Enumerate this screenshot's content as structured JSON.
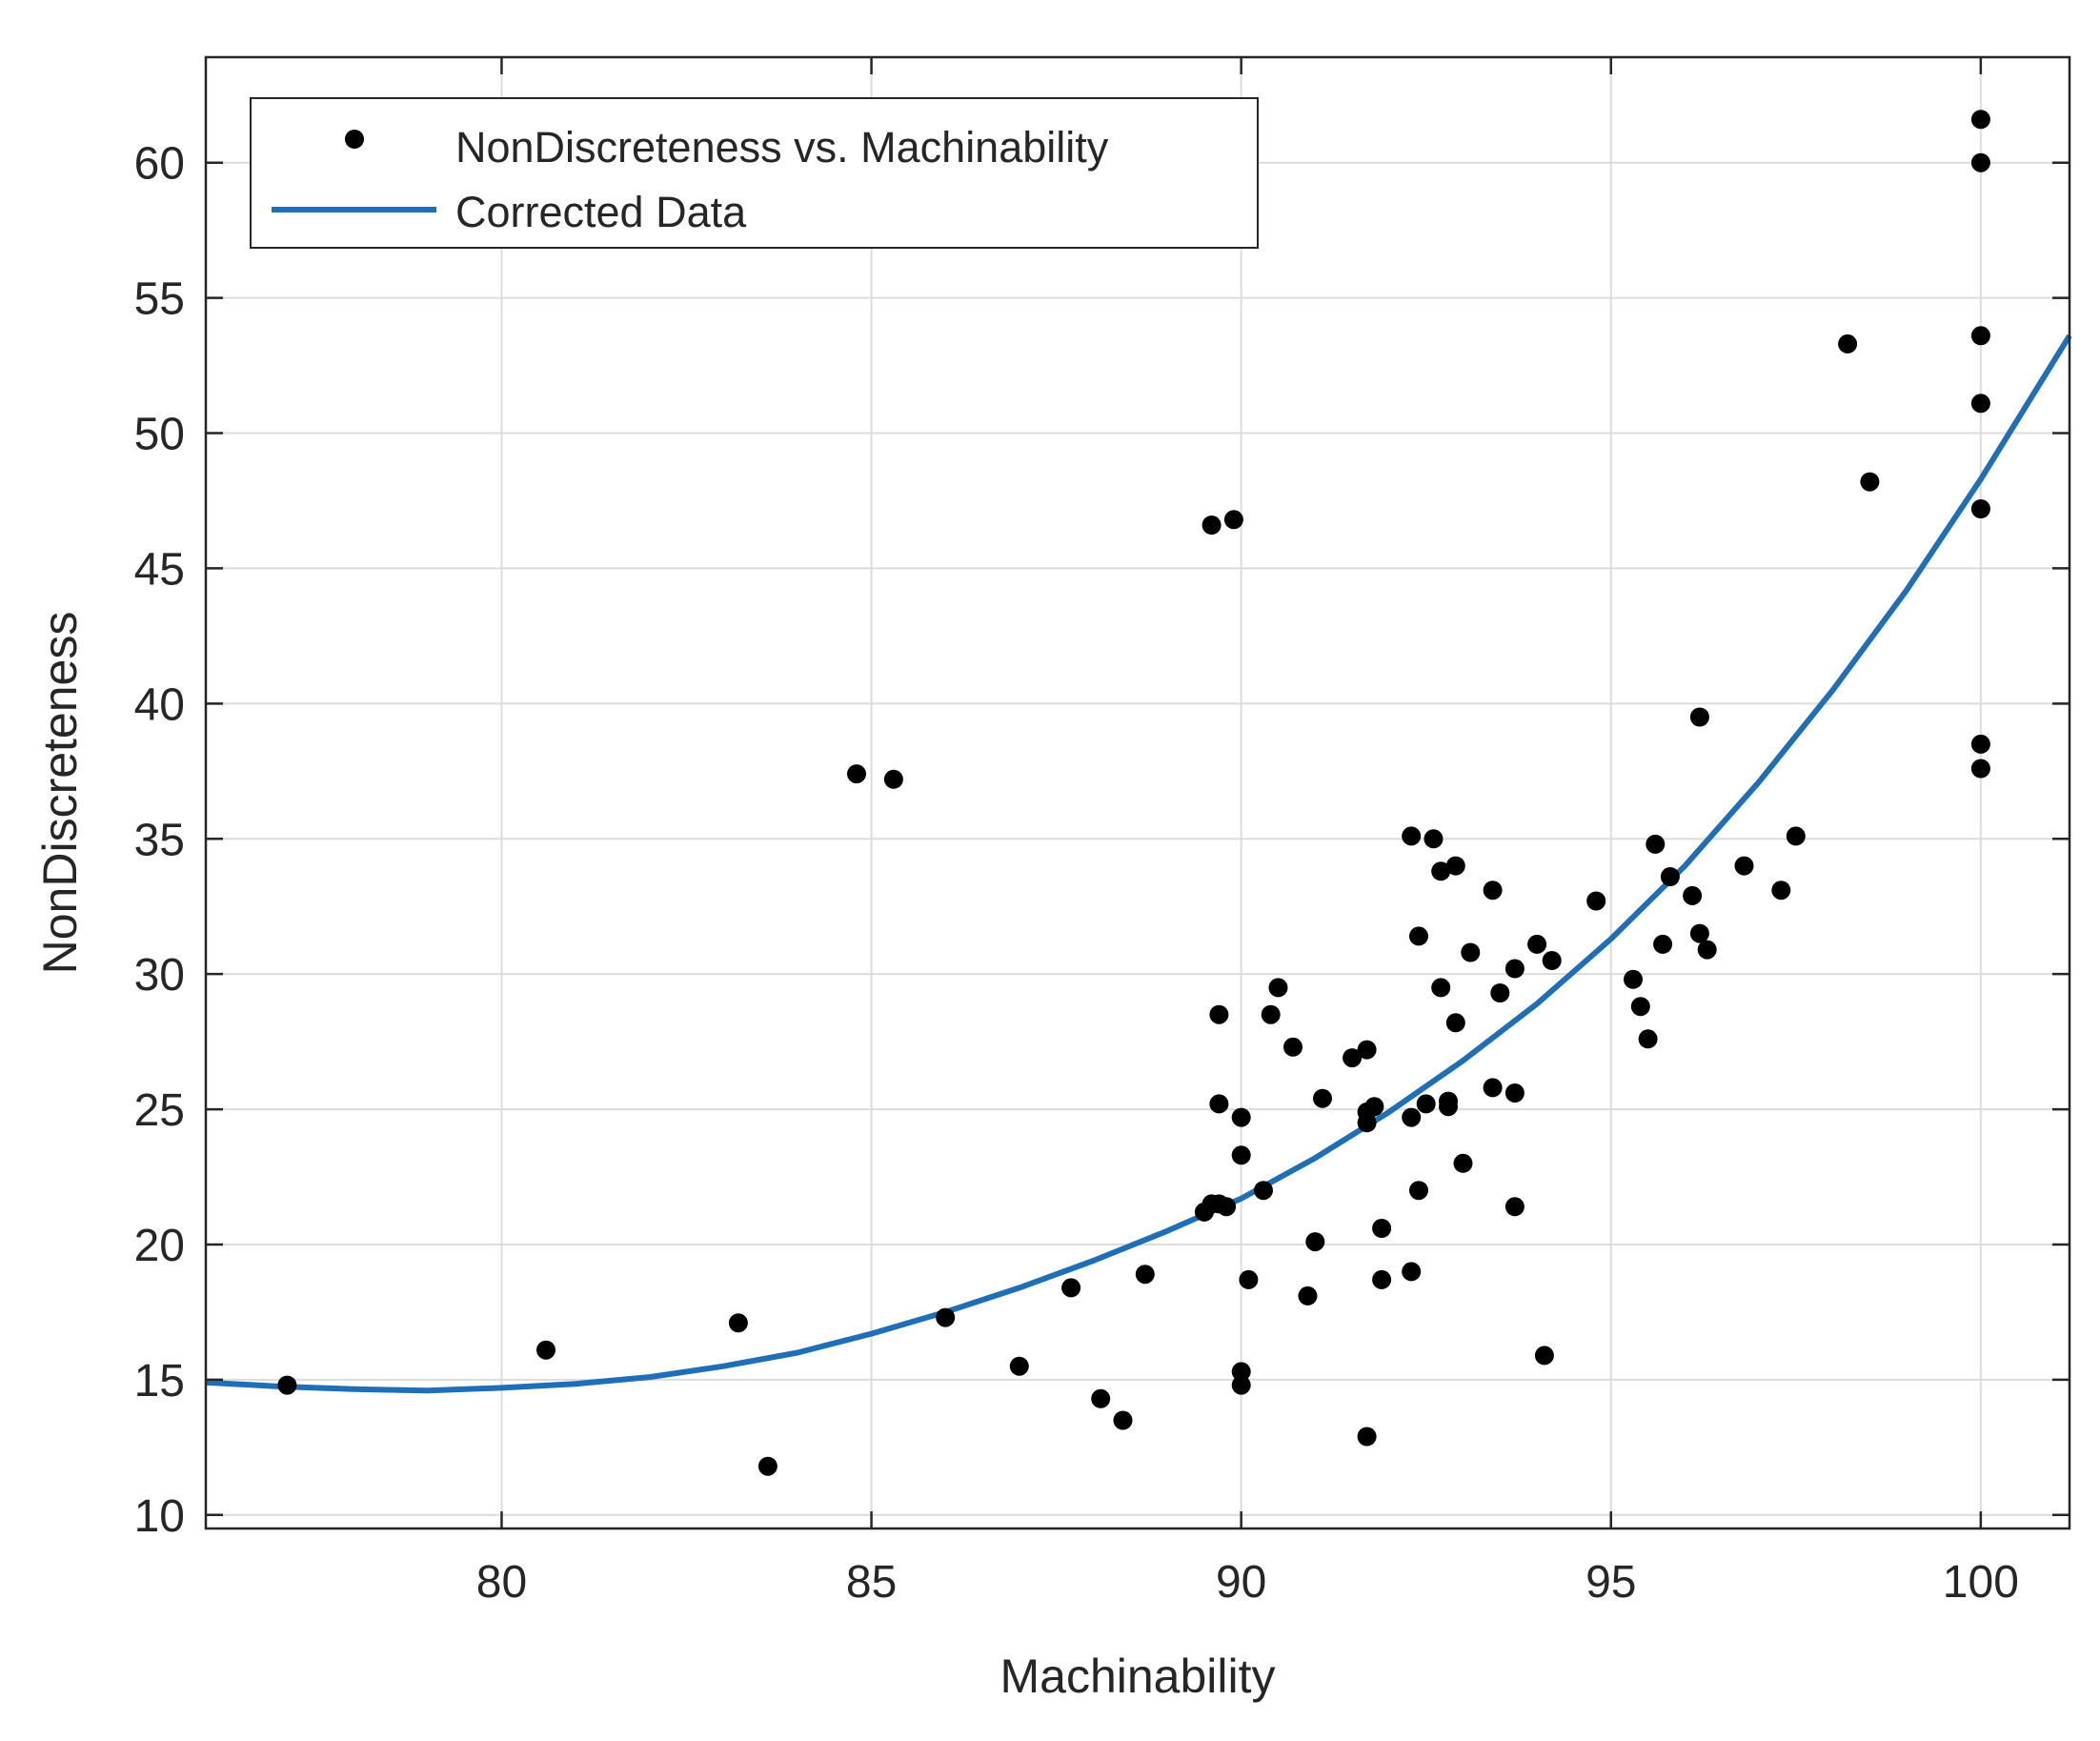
{
  "chart_data": {
    "type": "scatter",
    "title": "",
    "xlabel": "Machinability",
    "ylabel": "NonDiscreteness",
    "xlim": [
      76,
      101.2
    ],
    "ylim": [
      9.5,
      63.9
    ],
    "xticks": [
      80,
      85,
      90,
      95,
      100
    ],
    "yticks": [
      10,
      15,
      20,
      25,
      30,
      35,
      40,
      45,
      50,
      55,
      60
    ],
    "grid": true,
    "legend_position": "top-left",
    "colors": {
      "points": "#000000",
      "curve": "#1f6fb8",
      "grid": "#dcdcdc",
      "axis": "#262626"
    },
    "legend": [
      {
        "label": "NonDiscreteness vs. Machinability",
        "kind": "marker"
      },
      {
        "label": "Corrected Data",
        "kind": "line"
      }
    ],
    "series": [
      {
        "name": "NonDiscreteness vs. Machinability",
        "kind": "scatter",
        "points": [
          [
            77.1,
            14.8
          ],
          [
            80.6,
            16.1
          ],
          [
            83.2,
            17.1
          ],
          [
            83.6,
            11.8
          ],
          [
            84.8,
            37.4
          ],
          [
            85.3,
            37.2
          ],
          [
            86.0,
            17.3
          ],
          [
            87.0,
            15.5
          ],
          [
            87.7,
            18.4
          ],
          [
            88.1,
            14.3
          ],
          [
            88.4,
            13.5
          ],
          [
            88.7,
            18.9
          ],
          [
            89.5,
            21.2
          ],
          [
            89.6,
            21.5
          ],
          [
            89.6,
            46.6
          ],
          [
            89.7,
            25.2
          ],
          [
            89.7,
            21.5
          ],
          [
            89.7,
            28.5
          ],
          [
            89.8,
            21.4
          ],
          [
            89.9,
            46.8
          ],
          [
            90.0,
            24.7
          ],
          [
            90.0,
            23.3
          ],
          [
            90.0,
            15.3
          ],
          [
            90.0,
            14.8
          ],
          [
            90.1,
            18.7
          ],
          [
            90.3,
            22.0
          ],
          [
            90.4,
            28.5
          ],
          [
            90.5,
            29.5
          ],
          [
            90.7,
            27.3
          ],
          [
            90.9,
            18.1
          ],
          [
            91.0,
            20.1
          ],
          [
            91.1,
            25.4
          ],
          [
            91.5,
            26.9
          ],
          [
            91.7,
            12.9
          ],
          [
            91.7,
            27.2
          ],
          [
            91.7,
            24.9
          ],
          [
            91.7,
            24.5
          ],
          [
            91.8,
            25.1
          ],
          [
            91.9,
            20.6
          ],
          [
            91.9,
            18.7
          ],
          [
            92.3,
            19.0
          ],
          [
            92.3,
            35.1
          ],
          [
            92.3,
            24.7
          ],
          [
            92.4,
            22.0
          ],
          [
            92.4,
            31.4
          ],
          [
            92.5,
            25.2
          ],
          [
            92.6,
            35.0
          ],
          [
            92.7,
            33.8
          ],
          [
            92.7,
            29.5
          ],
          [
            92.8,
            25.1
          ],
          [
            92.8,
            25.3
          ],
          [
            92.9,
            34.0
          ],
          [
            92.9,
            28.2
          ],
          [
            93.0,
            23.0
          ],
          [
            93.1,
            30.8
          ],
          [
            93.4,
            33.1
          ],
          [
            93.4,
            25.8
          ],
          [
            93.5,
            29.3
          ],
          [
            93.7,
            25.6
          ],
          [
            93.7,
            21.4
          ],
          [
            93.7,
            30.2
          ],
          [
            94.0,
            31.1
          ],
          [
            94.1,
            15.9
          ],
          [
            94.2,
            30.5
          ],
          [
            94.8,
            32.7
          ],
          [
            95.3,
            29.8
          ],
          [
            95.4,
            28.8
          ],
          [
            95.5,
            27.6
          ],
          [
            95.6,
            34.8
          ],
          [
            95.7,
            31.1
          ],
          [
            95.8,
            33.6
          ],
          [
            96.1,
            32.9
          ],
          [
            96.2,
            39.5
          ],
          [
            96.2,
            31.5
          ],
          [
            96.3,
            30.9
          ],
          [
            96.8,
            34.0
          ],
          [
            97.3,
            33.1
          ],
          [
            97.5,
            35.1
          ],
          [
            98.2,
            53.3
          ],
          [
            98.5,
            48.2
          ],
          [
            100.0,
            61.6
          ],
          [
            100.0,
            60.0
          ],
          [
            100.0,
            53.6
          ],
          [
            100.0,
            51.1
          ],
          [
            100.0,
            47.2
          ],
          [
            100.0,
            38.5
          ],
          [
            100.0,
            37.6
          ]
        ]
      },
      {
        "name": "Corrected Data",
        "kind": "line",
        "points": [
          [
            76.0,
            14.9
          ],
          [
            77.0,
            14.75
          ],
          [
            78.0,
            14.65
          ],
          [
            79.0,
            14.6
          ],
          [
            80.0,
            14.7
          ],
          [
            81.0,
            14.85
          ],
          [
            82.0,
            15.1
          ],
          [
            83.0,
            15.5
          ],
          [
            84.0,
            16.0
          ],
          [
            85.0,
            16.7
          ],
          [
            86.0,
            17.5
          ],
          [
            87.0,
            18.4
          ],
          [
            88.0,
            19.4
          ],
          [
            89.0,
            20.5
          ],
          [
            90.0,
            21.7
          ],
          [
            91.0,
            23.2
          ],
          [
            92.0,
            24.9
          ],
          [
            93.0,
            26.8
          ],
          [
            94.0,
            28.9
          ],
          [
            95.0,
            31.3
          ],
          [
            96.0,
            34.0
          ],
          [
            97.0,
            37.1
          ],
          [
            98.0,
            40.5
          ],
          [
            99.0,
            44.2
          ],
          [
            100.0,
            48.3
          ],
          [
            101.2,
            53.6
          ]
        ]
      }
    ]
  }
}
